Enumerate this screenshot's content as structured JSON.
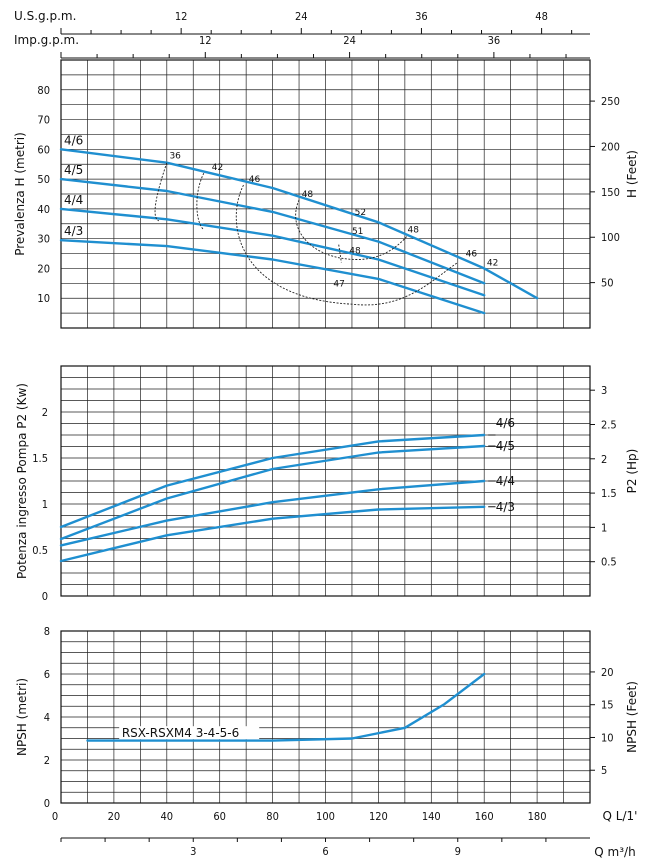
{
  "chart_data": [
    {
      "type": "line",
      "title": "",
      "top_axes": [
        {
          "label": "U.S.g.p.m.",
          "ticks": [
            12,
            24,
            36,
            48
          ]
        },
        {
          "label": "Imp.g.p.m.",
          "ticks": [
            12,
            24,
            36
          ]
        }
      ],
      "ylabel": "Prevalenza H (metri)",
      "y2label": "H (Feet)",
      "xlim": [
        0,
        200
      ],
      "ylim": [
        0,
        90
      ],
      "yticks": [
        10,
        20,
        30,
        40,
        50,
        60,
        70,
        80
      ],
      "y2ticks": [
        50,
        100,
        150,
        200,
        250
      ],
      "grid": true,
      "series": [
        {
          "name": "4/6",
          "x": [
            0,
            40,
            80,
            120,
            160,
            180
          ],
          "y": [
            60,
            55.5,
            47,
            35.5,
            20,
            10
          ]
        },
        {
          "name": "4/5",
          "x": [
            0,
            40,
            80,
            120,
            160
          ],
          "y": [
            50,
            46,
            39,
            29,
            15
          ]
        },
        {
          "name": "4/4",
          "x": [
            0,
            40,
            80,
            120,
            160
          ],
          "y": [
            40,
            36.5,
            31,
            23,
            11
          ]
        },
        {
          "name": "4/3",
          "x": [
            0,
            40,
            80,
            120,
            160
          ],
          "y": [
            29.5,
            27.5,
            23,
            16.5,
            5
          ]
        }
      ],
      "efficiency_labels": [
        "36",
        "42",
        "46",
        "48",
        "52",
        "51",
        "48",
        "48",
        "47",
        "46",
        "42"
      ]
    },
    {
      "type": "line",
      "title": "",
      "ylabel": "Potenza ingresso Pompa P2 (Kw)",
      "y2label": "P2 (Hp)",
      "xlim": [
        0,
        200
      ],
      "ylim": [
        0,
        2.5
      ],
      "yticks": [
        "0",
        "0.5",
        "1",
        "1.5",
        "2"
      ],
      "y2ticks": [
        "0.5",
        "1",
        "1.5",
        "2",
        "2.5",
        "3"
      ],
      "grid": true,
      "series": [
        {
          "name": "4/6",
          "x": [
            0,
            40,
            80,
            120,
            160
          ],
          "y": [
            0.75,
            1.2,
            1.5,
            1.68,
            1.75
          ]
        },
        {
          "name": "4/5",
          "x": [
            0,
            40,
            80,
            120,
            160
          ],
          "y": [
            0.62,
            1.06,
            1.38,
            1.56,
            1.63
          ]
        },
        {
          "name": "4/4",
          "x": [
            0,
            40,
            80,
            120,
            160
          ],
          "y": [
            0.55,
            0.82,
            1.02,
            1.16,
            1.25
          ]
        },
        {
          "name": "4/3",
          "x": [
            0,
            40,
            80,
            120,
            160
          ],
          "y": [
            0.38,
            0.66,
            0.84,
            0.94,
            0.97
          ]
        }
      ]
    },
    {
      "type": "line",
      "title": "",
      "ylabel": "NPSH (metri)",
      "y2label": "NPSH (Feet)",
      "xlabel": "Q L/1'",
      "x2label": "Q m³/h",
      "xlim": [
        0,
        200
      ],
      "ylim": [
        0,
        8
      ],
      "yticks": [
        "0",
        "2",
        "4",
        "6",
        "8"
      ],
      "y2ticks": [
        "5",
        "10",
        "15",
        "20"
      ],
      "xticks": [
        20,
        40,
        60,
        80,
        100,
        120,
        140,
        160,
        180
      ],
      "x2ticks": [
        3,
        6,
        9
      ],
      "grid": true,
      "series": [
        {
          "name": "RSX-RSXM4 3-4-5-6",
          "x": [
            10,
            40,
            80,
            110,
            130,
            145,
            160
          ],
          "y": [
            2.9,
            2.9,
            2.9,
            3.0,
            3.5,
            4.6,
            6.0
          ]
        }
      ]
    }
  ]
}
